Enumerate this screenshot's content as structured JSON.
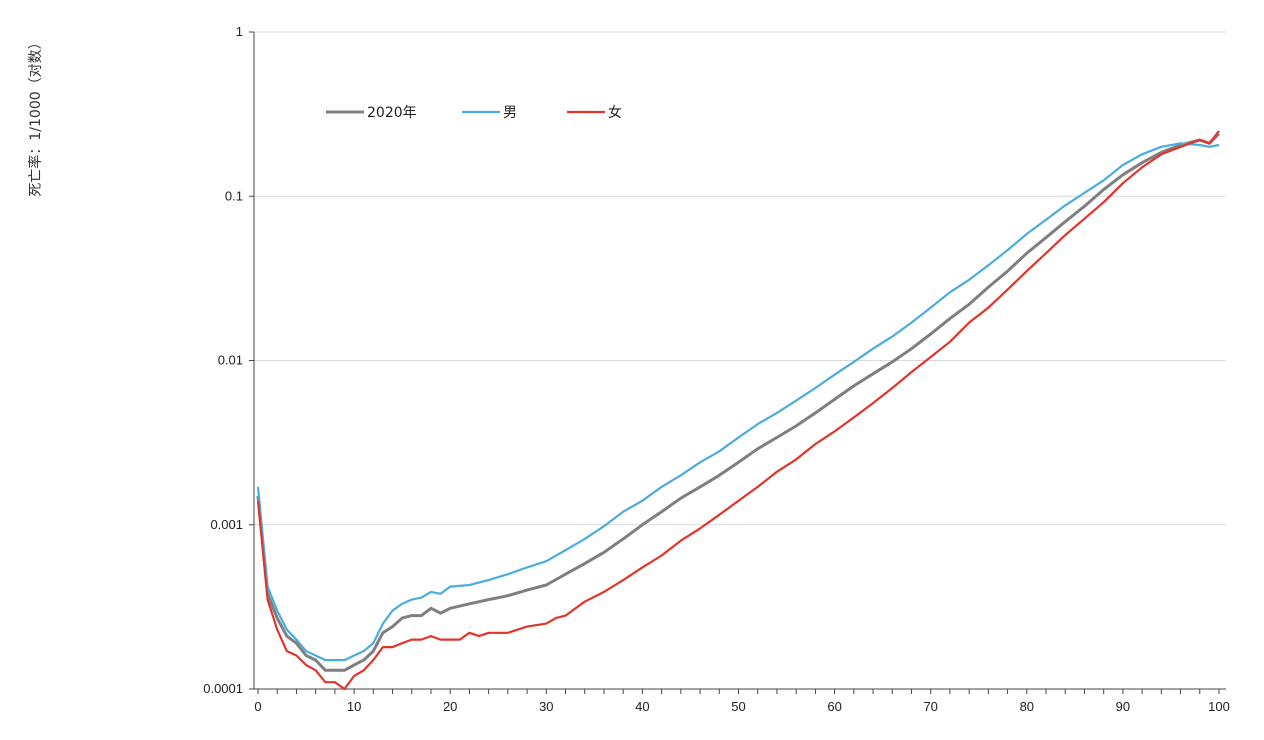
{
  "chart_data": {
    "type": "line",
    "ylabel": "死亡率：1/1000（对数）",
    "xlabel": "",
    "title": "",
    "yscale": "log",
    "ylim": [
      0.0001,
      1
    ],
    "xlim": [
      0,
      100
    ],
    "xticks": [
      0,
      10,
      20,
      30,
      40,
      50,
      60,
      70,
      80,
      90,
      100
    ],
    "xtick_labels": [
      "0",
      "10",
      "20",
      "30",
      "40",
      "50",
      "60",
      "70",
      "80",
      "90",
      "100"
    ],
    "yticks": [
      0.0001,
      0.001,
      0.01,
      0.1,
      1
    ],
    "ytick_labels": [
      "0.0001",
      "0.001",
      "0.01",
      "0.1",
      "1"
    ],
    "grid": "horizontal",
    "legend_position": "top-left",
    "series": [
      {
        "name": "2020年",
        "color": "#7f7f7f",
        "points": [
          [
            0,
            0.0015
          ],
          [
            1,
            0.00038
          ],
          [
            2,
            0.00027
          ],
          [
            3,
            0.00021
          ],
          [
            4,
            0.00019
          ],
          [
            5,
            0.00016
          ],
          [
            6,
            0.00015
          ],
          [
            7,
            0.00013
          ],
          [
            8,
            0.00013
          ],
          [
            9,
            0.00013
          ],
          [
            10,
            0.00014
          ],
          [
            11,
            0.00015
          ],
          [
            12,
            0.00017
          ],
          [
            13,
            0.00022
          ],
          [
            14,
            0.00024
          ],
          [
            15,
            0.00027
          ],
          [
            16,
            0.00028
          ],
          [
            17,
            0.00028
          ],
          [
            18,
            0.00031
          ],
          [
            19,
            0.00029
          ],
          [
            20,
            0.00031
          ],
          [
            22,
            0.00033
          ],
          [
            24,
            0.00035
          ],
          [
            26,
            0.00037
          ],
          [
            28,
            0.0004
          ],
          [
            30,
            0.00043
          ],
          [
            32,
            0.0005
          ],
          [
            34,
            0.00058
          ],
          [
            36,
            0.00068
          ],
          [
            38,
            0.00082
          ],
          [
            40,
            0.001
          ],
          [
            42,
            0.0012
          ],
          [
            44,
            0.00145
          ],
          [
            46,
            0.0017
          ],
          [
            48,
            0.002
          ],
          [
            50,
            0.0024
          ],
          [
            52,
            0.0029
          ],
          [
            54,
            0.0034
          ],
          [
            56,
            0.004
          ],
          [
            58,
            0.0048
          ],
          [
            60,
            0.0058
          ],
          [
            62,
            0.007
          ],
          [
            64,
            0.0083
          ],
          [
            66,
            0.0098
          ],
          [
            68,
            0.0118
          ],
          [
            70,
            0.0145
          ],
          [
            72,
            0.018
          ],
          [
            74,
            0.022
          ],
          [
            76,
            0.028
          ],
          [
            78,
            0.035
          ],
          [
            80,
            0.045
          ],
          [
            82,
            0.056
          ],
          [
            84,
            0.07
          ],
          [
            86,
            0.087
          ],
          [
            88,
            0.11
          ],
          [
            90,
            0.135
          ],
          [
            92,
            0.16
          ],
          [
            94,
            0.185
          ],
          [
            96,
            0.205
          ],
          [
            98,
            0.22
          ],
          [
            99,
            0.21
          ],
          [
            100,
            0.24
          ]
        ]
      },
      {
        "name": "男",
        "color": "#4aacde",
        "points": [
          [
            0,
            0.0017
          ],
          [
            1,
            0.00042
          ],
          [
            2,
            0.0003
          ],
          [
            3,
            0.00023
          ],
          [
            4,
            0.0002
          ],
          [
            5,
            0.00017
          ],
          [
            6,
            0.00016
          ],
          [
            7,
            0.00015
          ],
          [
            8,
            0.00015
          ],
          [
            9,
            0.00015
          ],
          [
            10,
            0.00016
          ],
          [
            11,
            0.00017
          ],
          [
            12,
            0.00019
          ],
          [
            13,
            0.00025
          ],
          [
            14,
            0.0003
          ],
          [
            15,
            0.00033
          ],
          [
            16,
            0.00035
          ],
          [
            17,
            0.00036
          ],
          [
            18,
            0.00039
          ],
          [
            19,
            0.00038
          ],
          [
            20,
            0.00042
          ],
          [
            22,
            0.00043
          ],
          [
            24,
            0.00046
          ],
          [
            26,
            0.0005
          ],
          [
            28,
            0.00055
          ],
          [
            30,
            0.0006
          ],
          [
            32,
            0.0007
          ],
          [
            34,
            0.00082
          ],
          [
            36,
            0.00098
          ],
          [
            38,
            0.0012
          ],
          [
            40,
            0.0014
          ],
          [
            42,
            0.0017
          ],
          [
            44,
            0.002
          ],
          [
            46,
            0.0024
          ],
          [
            48,
            0.0028
          ],
          [
            50,
            0.0034
          ],
          [
            52,
            0.0041
          ],
          [
            54,
            0.0048
          ],
          [
            56,
            0.0057
          ],
          [
            58,
            0.0068
          ],
          [
            60,
            0.0082
          ],
          [
            62,
            0.0098
          ],
          [
            64,
            0.0118
          ],
          [
            66,
            0.014
          ],
          [
            68,
            0.017
          ],
          [
            70,
            0.021
          ],
          [
            72,
            0.026
          ],
          [
            74,
            0.031
          ],
          [
            76,
            0.038
          ],
          [
            78,
            0.047
          ],
          [
            80,
            0.059
          ],
          [
            82,
            0.072
          ],
          [
            84,
            0.088
          ],
          [
            86,
            0.105
          ],
          [
            88,
            0.125
          ],
          [
            90,
            0.155
          ],
          [
            92,
            0.18
          ],
          [
            94,
            0.2
          ],
          [
            96,
            0.21
          ],
          [
            98,
            0.205
          ],
          [
            99,
            0.2
          ],
          [
            100,
            0.205
          ]
        ]
      },
      {
        "name": "女",
        "color": "#e0342c",
        "points": [
          [
            0,
            0.0014
          ],
          [
            1,
            0.00035
          ],
          [
            2,
            0.00023
          ],
          [
            3,
            0.00017
          ],
          [
            4,
            0.00016
          ],
          [
            5,
            0.00014
          ],
          [
            6,
            0.00013
          ],
          [
            7,
            0.00011
          ],
          [
            8,
            0.00011
          ],
          [
            9,
            0.0001
          ],
          [
            10,
            0.00012
          ],
          [
            11,
            0.00013
          ],
          [
            12,
            0.00015
          ],
          [
            13,
            0.00018
          ],
          [
            14,
            0.00018
          ],
          [
            15,
            0.00019
          ],
          [
            16,
            0.0002
          ],
          [
            17,
            0.0002
          ],
          [
            18,
            0.00021
          ],
          [
            19,
            0.0002
          ],
          [
            20,
            0.0002
          ],
          [
            21,
            0.0002
          ],
          [
            22,
            0.00022
          ],
          [
            23,
            0.00021
          ],
          [
            24,
            0.00022
          ],
          [
            26,
            0.00022
          ],
          [
            28,
            0.00024
          ],
          [
            30,
            0.00025
          ],
          [
            31,
            0.00027
          ],
          [
            32,
            0.00028
          ],
          [
            34,
            0.00034
          ],
          [
            36,
            0.00039
          ],
          [
            38,
            0.00046
          ],
          [
            40,
            0.00055
          ],
          [
            42,
            0.00065
          ],
          [
            44,
            0.0008
          ],
          [
            46,
            0.00095
          ],
          [
            48,
            0.00115
          ],
          [
            50,
            0.0014
          ],
          [
            52,
            0.0017
          ],
          [
            54,
            0.0021
          ],
          [
            56,
            0.0025
          ],
          [
            58,
            0.0031
          ],
          [
            60,
            0.0037
          ],
          [
            62,
            0.0045
          ],
          [
            64,
            0.0055
          ],
          [
            66,
            0.0068
          ],
          [
            68,
            0.0085
          ],
          [
            70,
            0.0105
          ],
          [
            72,
            0.013
          ],
          [
            74,
            0.017
          ],
          [
            76,
            0.021
          ],
          [
            78,
            0.027
          ],
          [
            80,
            0.035
          ],
          [
            82,
            0.045
          ],
          [
            84,
            0.058
          ],
          [
            86,
            0.073
          ],
          [
            88,
            0.092
          ],
          [
            90,
            0.12
          ],
          [
            92,
            0.15
          ],
          [
            94,
            0.18
          ],
          [
            96,
            0.2
          ],
          [
            98,
            0.22
          ],
          [
            99,
            0.21
          ],
          [
            100,
            0.25
          ]
        ]
      }
    ]
  }
}
